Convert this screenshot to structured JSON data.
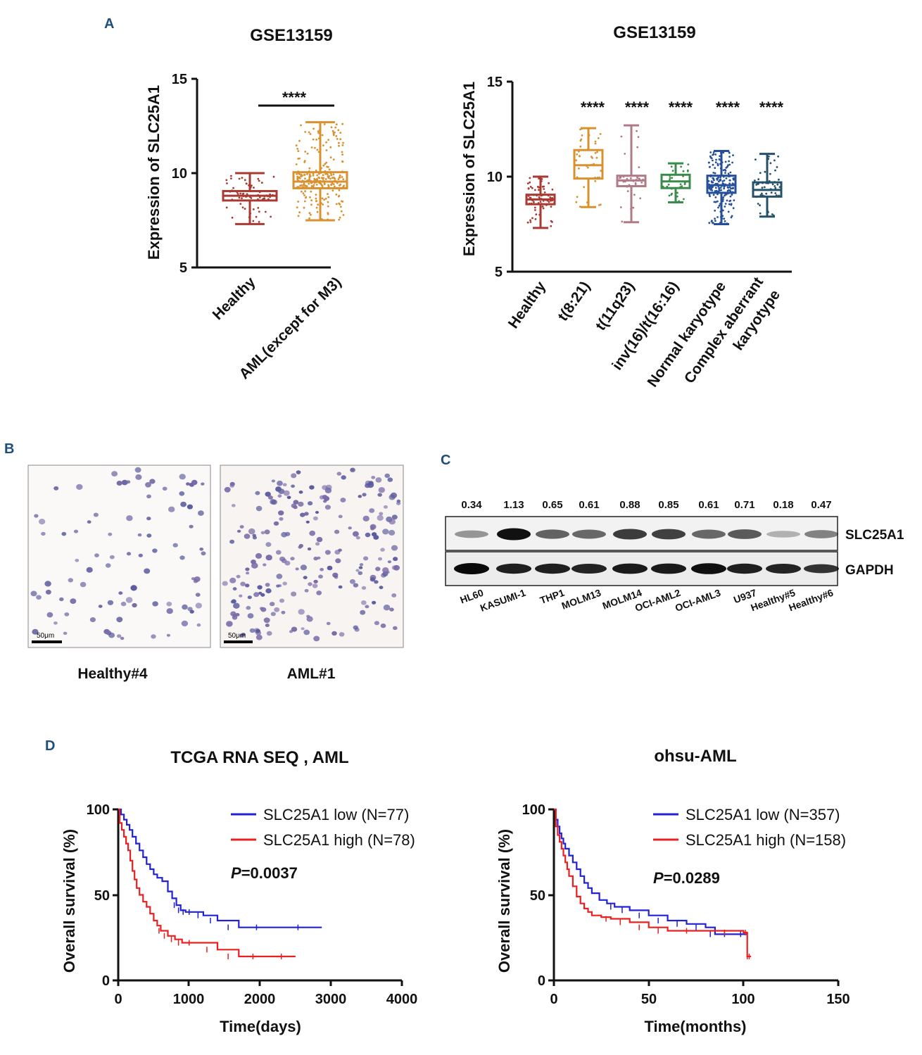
{
  "panels": {
    "a": "A",
    "b": "B",
    "c": "C",
    "d": "D"
  },
  "chart_data": [
    {
      "type": "box",
      "panel": "A-left",
      "title": "GSE13159",
      "ylabel": "Expression of SLC25A1",
      "ylim": [
        5,
        15
      ],
      "yticks": [
        "5",
        "10",
        "15"
      ],
      "categories": [
        "Healthy",
        "AML(except for M3)"
      ],
      "colors": [
        "#a83a32",
        "#d9902f"
      ],
      "boxes": [
        {
          "min": 7.3,
          "q1": 8.55,
          "median": 8.8,
          "q3": 9.05,
          "max": 10.0,
          "n": 70
        },
        {
          "min": 7.5,
          "q1": 9.2,
          "median": 9.55,
          "q3": 10.05,
          "max": 12.7,
          "n": 260
        }
      ],
      "significance": "****"
    },
    {
      "type": "box",
      "panel": "A-right",
      "title": "GSE13159",
      "ylabel": "Expression of SLC25A1",
      "ylim": [
        5,
        15
      ],
      "yticks": [
        "5",
        "10",
        "15"
      ],
      "categories": [
        "Healthy",
        "t(8:21)",
        "t(11q23)",
        "inv(16)/t(16:16)",
        "Normal karyotype",
        "Complex aberrant karyotype"
      ],
      "category_lines": [
        [
          "Healthy"
        ],
        [
          "t(8:21)"
        ],
        [
          "t(11q23)"
        ],
        [
          "inv(16)/t(16:16)"
        ],
        [
          "Normal karyotype"
        ],
        [
          "Complex aberrant",
          "karyotype"
        ]
      ],
      "colors": [
        "#a83a32",
        "#d9902f",
        "#b07a86",
        "#3a8a4a",
        "#264f9a",
        "#24506a"
      ],
      "boxes": [
        {
          "min": 7.3,
          "q1": 8.55,
          "median": 8.8,
          "q3": 9.05,
          "max": 10.0,
          "n": 70
        },
        {
          "min": 8.4,
          "q1": 9.9,
          "median": 10.6,
          "q3": 11.4,
          "max": 12.55,
          "n": 40
        },
        {
          "min": 7.6,
          "q1": 9.5,
          "median": 9.8,
          "q3": 10.05,
          "max": 12.7,
          "n": 40
        },
        {
          "min": 8.65,
          "q1": 9.4,
          "median": 9.75,
          "q3": 10.1,
          "max": 10.7,
          "n": 30
        },
        {
          "min": 7.5,
          "q1": 9.15,
          "median": 9.55,
          "q3": 10.05,
          "max": 11.35,
          "n": 200
        },
        {
          "min": 7.9,
          "q1": 8.95,
          "median": 9.3,
          "q3": 9.7,
          "max": 11.2,
          "n": 50
        }
      ],
      "significance": [
        "",
        "****",
        "****",
        "****",
        "****",
        "****"
      ]
    },
    {
      "type": "table",
      "panel": "C",
      "description": "Western blot densitometry (SLC25A1/GAPDH)",
      "categories": [
        "HL60",
        "KASUMI-1",
        "THP1",
        "MOLM13",
        "MOLM14",
        "OCI-AML2",
        "OCI-AML3",
        "U937",
        "Healthy#5",
        "Healthy#6"
      ],
      "values": [
        0.34,
        1.13,
        0.65,
        0.61,
        0.88,
        0.85,
        0.61,
        0.71,
        0.18,
        0.47
      ],
      "value_labels": [
        "0.34",
        "1.13",
        "0.65",
        "0.61",
        "0.88",
        "0.85",
        "0.61",
        "0.71",
        "0.18",
        "0.47"
      ],
      "gapdh": [
        1.0,
        0.8,
        0.8,
        0.75,
        0.85,
        0.85,
        0.95,
        0.8,
        0.75,
        0.6
      ],
      "rows": [
        "SLC25A1",
        "GAPDH"
      ]
    },
    {
      "type": "line",
      "panel": "D-left",
      "title": "TCGA RNA SEQ , AML",
      "xlabel": "Time(days)",
      "ylabel": "Overall survival (%)",
      "xlim": [
        0,
        4000
      ],
      "ylim": [
        0,
        100
      ],
      "xticks": [
        "0",
        "1000",
        "2000",
        "3000",
        "4000"
      ],
      "yticks": [
        "0",
        "50",
        "100"
      ],
      "pvalue_prefix": "P",
      "pvalue": "=0.0037",
      "series": [
        {
          "name": "SLC25A1 low (N=77)",
          "color": "#2121d6",
          "x": [
            0,
            40,
            80,
            120,
            160,
            200,
            250,
            300,
            350,
            400,
            450,
            500,
            550,
            620,
            700,
            760,
            820,
            880,
            950,
            1050,
            1200,
            1400,
            1700,
            2200,
            2870
          ],
          "y": [
            100,
            97,
            94,
            91,
            88,
            84,
            80,
            76,
            72,
            68,
            65,
            62,
            60,
            58,
            52,
            48,
            44,
            41,
            40,
            40,
            38,
            35,
            31,
            31,
            31
          ]
        },
        {
          "name": "SLC25A1 high (N=78)",
          "color": "#ea2020",
          "x": [
            0,
            20,
            50,
            80,
            110,
            140,
            170,
            200,
            230,
            260,
            300,
            350,
            400,
            450,
            500,
            550,
            600,
            700,
            800,
            900,
            1100,
            1400,
            1700,
            2100,
            2500
          ],
          "y": [
            100,
            92,
            88,
            84,
            80,
            76,
            70,
            64,
            59,
            54,
            50,
            46,
            43,
            39,
            35,
            32,
            29,
            26,
            24,
            22,
            22,
            18,
            14,
            14,
            14
          ]
        }
      ]
    },
    {
      "type": "line",
      "panel": "D-right",
      "title": "ohsu-AML",
      "xlabel": "Time(months)",
      "ylabel": "Overall survival (%)",
      "xlim": [
        0,
        150
      ],
      "ylim": [
        0,
        100
      ],
      "xticks": [
        "0",
        "50",
        "100",
        "150"
      ],
      "yticks": [
        "0",
        "50",
        "100"
      ],
      "pvalue_prefix": "P",
      "pvalue": "=0.0289",
      "series": [
        {
          "name": "SLC25A1 low (N=357)",
          "color": "#2121d6",
          "x": [
            0,
            1,
            2,
            3,
            4,
            5,
            6,
            8,
            10,
            12,
            14,
            16,
            18,
            20,
            24,
            28,
            32,
            40,
            50,
            60,
            70,
            80,
            85,
            95,
            102
          ],
          "y": [
            100,
            94,
            90,
            86,
            83,
            80,
            77,
            73,
            69,
            65,
            61,
            57,
            54,
            51,
            47,
            45,
            43,
            41,
            38,
            35,
            33,
            31,
            27,
            27,
            27
          ]
        },
        {
          "name": "SLC25A1 high (N=158)",
          "color": "#ea2020",
          "x": [
            0,
            1,
            2,
            3,
            4,
            5,
            6,
            7,
            8,
            10,
            12,
            14,
            16,
            18,
            20,
            25,
            30,
            40,
            50,
            60,
            80,
            100,
            102,
            102,
            104
          ],
          "y": [
            100,
            90,
            85,
            81,
            77,
            73,
            69,
            65,
            61,
            55,
            49,
            45,
            42,
            40,
            38,
            37,
            36,
            34,
            31,
            29,
            29,
            28,
            28,
            14,
            14
          ]
        }
      ]
    }
  ],
  "micrographs": [
    {
      "caption": "Healthy#4",
      "scale": "50μm"
    },
    {
      "caption": "AML#1",
      "scale": "50μm"
    }
  ]
}
